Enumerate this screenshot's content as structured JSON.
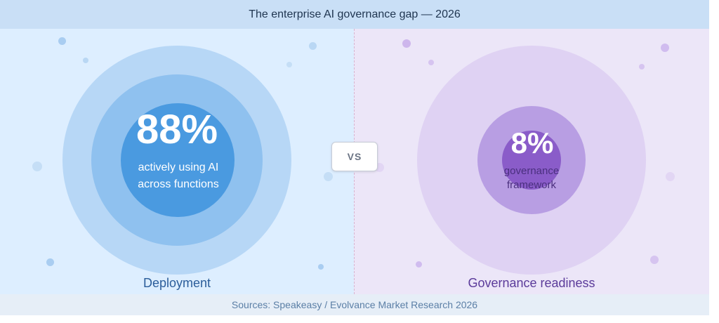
{
  "title": "The enterprise AI governance gap — 2026",
  "vs_label": "VS",
  "source": "Sources: Speakeasy / Evolvance Market Research 2026",
  "deployment": {
    "value": "88%",
    "caption_line1": "actively using AI",
    "caption_line2": "across functions",
    "label": "Deployment",
    "percent": 88,
    "colors": {
      "background": "#ddeeff",
      "outer_ring": "#b7d7f6",
      "middle_ring": "#8fc1ef",
      "core": "#4a9ae0",
      "label_text": "#2b5d9a",
      "caption_text": "#ffffff"
    }
  },
  "governance": {
    "value": "8%",
    "caption_line1": "governance",
    "caption_line2": "framework",
    "label": "Governance readiness",
    "percent": 8,
    "colors": {
      "background": "#ece6f8",
      "outer_ring": "#dfd2f3",
      "middle_ring": "#b89ee3",
      "core": "#8a5cc9",
      "label_text": "#5b3b9a",
      "caption_text": "#4a2f7e"
    }
  }
}
